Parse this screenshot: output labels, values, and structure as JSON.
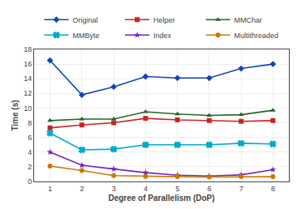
{
  "chart_data": {
    "type": "line",
    "x": [
      1,
      2,
      3,
      4,
      5,
      6,
      7,
      8
    ],
    "series": [
      {
        "name": "Original",
        "color": "#1144bb",
        "marker": "diamond",
        "values": [
          16.5,
          11.8,
          12.9,
          14.3,
          14.1,
          14.1,
          15.4,
          16.0
        ]
      },
      {
        "name": "Helper",
        "color": "#cc2222",
        "marker": "square",
        "values": [
          7.3,
          7.7,
          8.0,
          8.6,
          8.4,
          8.3,
          8.2,
          8.3
        ]
      },
      {
        "name": "MMChar",
        "color": "#226622",
        "marker": "triangle-up",
        "values": [
          8.3,
          8.5,
          8.5,
          9.5,
          9.2,
          9.0,
          9.1,
          9.7
        ]
      },
      {
        "name": "MMByte",
        "color": "#00aacc",
        "marker": "x",
        "values": [
          6.6,
          4.3,
          4.4,
          5.0,
          5.0,
          5.0,
          5.2,
          5.1
        ]
      },
      {
        "name": "Index",
        "color": "#7722bb",
        "marker": "star",
        "values": [
          4.0,
          2.2,
          1.7,
          1.2,
          0.85,
          0.75,
          0.9,
          1.6
        ]
      },
      {
        "name": "Multithreaded",
        "color": "#cc7700",
        "marker": "circle",
        "values": [
          2.1,
          1.5,
          0.8,
          0.7,
          0.65,
          0.6,
          0.65,
          0.65
        ]
      }
    ],
    "x_label": "Degree of Parallelism (DoP)",
    "y_label": "Time (s)",
    "xlim": [
      0.5,
      8.5
    ],
    "xticks": [
      1,
      2,
      3,
      4,
      5,
      6,
      7,
      8
    ],
    "ylim": [
      0,
      18
    ],
    "yticks": [
      0,
      2,
      4,
      6,
      8,
      10,
      12,
      14,
      16,
      18
    ],
    "grid": true,
    "legend": "top"
  }
}
